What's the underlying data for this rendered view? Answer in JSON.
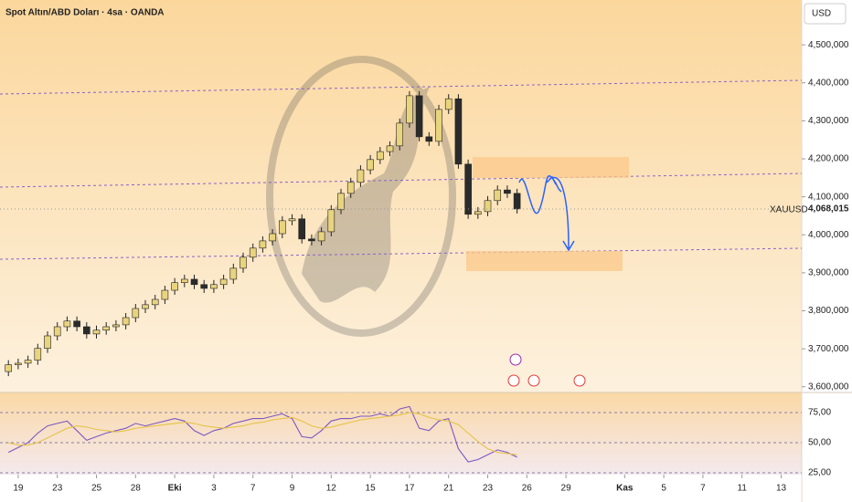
{
  "chart_data": [
    {
      "type": "candlestick",
      "title": "Spot Altın/ABD Doları · 4sa · OANDA",
      "currency": "USD",
      "up_color": "#e9d47e",
      "down_color": "#2b2b2b",
      "x": [
        -0.5,
        0,
        0.5,
        1,
        1.5,
        2,
        2.5,
        3,
        3.5,
        4,
        4.5,
        5,
        5.5,
        6,
        6.5,
        7,
        7.5,
        8,
        8.5,
        9,
        9.5,
        10,
        10.5,
        11,
        11.5,
        12,
        12.5,
        13,
        13.5,
        14,
        14.5,
        15,
        15.5,
        16,
        16.5,
        17,
        17.5,
        18,
        18.5,
        19,
        19.5,
        20,
        20.5,
        21,
        21.5,
        22,
        22.5,
        23,
        23.5,
        24,
        24.5,
        25,
        25.5
      ],
      "open": [
        3640000,
        3658000,
        3662000,
        3670000,
        3701000,
        3734000,
        3758000,
        3773000,
        3758000,
        3739000,
        3749000,
        3758000,
        3763000,
        3782000,
        3806000,
        3816000,
        3830000,
        3854000,
        3874000,
        3883000,
        3869000,
        3859000,
        3869000,
        3883000,
        3912000,
        3941000,
        3965000,
        3984000,
        4003000,
        4037000,
        4042000,
        3989000,
        3984000,
        4008000,
        4066000,
        4109000,
        4138000,
        4171000,
        4198000,
        4219000,
        4234000,
        4294000,
        4366000,
        4258000,
        4246000,
        4330000,
        4358000,
        4186000,
        4054000,
        4061000,
        4090000,
        4118000,
        4109000
      ],
      "high": [
        3670000,
        3674000,
        3682000,
        3713000,
        3746000,
        3770000,
        3785000,
        3785000,
        3770000,
        3761000,
        3770000,
        3775000,
        3794000,
        3818000,
        3828000,
        3842000,
        3866000,
        3886000,
        3895000,
        3895000,
        3881000,
        3881000,
        3895000,
        3924000,
        3953000,
        3977000,
        3996000,
        4015000,
        4049000,
        4054000,
        4054000,
        4001000,
        4020000,
        4078000,
        4121000,
        4150000,
        4183000,
        4210000,
        4231000,
        4246000,
        4306000,
        4378000,
        4378000,
        4270000,
        4342000,
        4370000,
        4370000,
        4198000,
        4073000,
        4102000,
        4130000,
        4130000,
        4121000
      ],
      "low": [
        3628000,
        3646000,
        3650000,
        3658000,
        3689000,
        3722000,
        3746000,
        3746000,
        3727000,
        3727000,
        3737000,
        3746000,
        3751000,
        3770000,
        3794000,
        3804000,
        3818000,
        3842000,
        3862000,
        3857000,
        3847000,
        3847000,
        3857000,
        3871000,
        3900000,
        3929000,
        3953000,
        3972000,
        3991000,
        4025000,
        3977000,
        3972000,
        3972000,
        3996000,
        4054000,
        4097000,
        4126000,
        4159000,
        4186000,
        4207000,
        4222000,
        4282000,
        4246000,
        4234000,
        4234000,
        4318000,
        4174000,
        4042000,
        4042000,
        4049000,
        4078000,
        4097000,
        4056000
      ],
      "close": [
        3658000,
        3662000,
        3670000,
        3701000,
        3734000,
        3758000,
        3773000,
        3758000,
        3739000,
        3749000,
        3758000,
        3763000,
        3782000,
        3806000,
        3816000,
        3830000,
        3854000,
        3874000,
        3883000,
        3869000,
        3859000,
        3869000,
        3883000,
        3912000,
        3941000,
        3965000,
        3984000,
        4003000,
        4037000,
        4042000,
        3989000,
        3984000,
        4008000,
        4066000,
        4109000,
        4138000,
        4171000,
        4198000,
        4219000,
        4234000,
        4294000,
        4366000,
        4258000,
        4246000,
        4330000,
        4358000,
        4186000,
        4054000,
        4061000,
        4090000,
        4118000,
        4109000,
        4068000
      ],
      "xlim": [
        -0.93,
        40.05
      ],
      "ylim": [
        3585000,
        4618000
      ],
      "yticks": [
        {
          "value": 3600000,
          "label": "3,600,000"
        },
        {
          "value": 3700000,
          "label": "3,700,000"
        },
        {
          "value": 3800000,
          "label": "3,800,000"
        },
        {
          "value": 3900000,
          "label": "3,900,000"
        },
        {
          "value": 4000000,
          "label": "4,000,000"
        },
        {
          "value": 4100000,
          "label": "4,100,000"
        },
        {
          "value": 4200000,
          "label": "4,200,000"
        },
        {
          "value": 4300000,
          "label": "4,300,000"
        },
        {
          "value": 4400000,
          "label": "4,400,000"
        },
        {
          "value": 4500000,
          "label": "4,500,000"
        }
      ],
      "xticks": [
        {
          "value": 0,
          "label": "19"
        },
        {
          "value": 2,
          "label": "23"
        },
        {
          "value": 4,
          "label": "25"
        },
        {
          "value": 6,
          "label": "28"
        },
        {
          "value": 8,
          "label": "Eki"
        },
        {
          "value": 10,
          "label": "3"
        },
        {
          "value": 12,
          "label": "7"
        },
        {
          "value": 14,
          "label": "9"
        },
        {
          "value": 16,
          "label": "12"
        },
        {
          "value": 18,
          "label": "15"
        },
        {
          "value": 20,
          "label": "17"
        },
        {
          "value": 22,
          "label": "21"
        },
        {
          "value": 24,
          "label": "23"
        },
        {
          "value": 26,
          "label": "26"
        },
        {
          "value": 28,
          "label": "29"
        },
        {
          "value": 31,
          "label": "Kas"
        },
        {
          "value": 33,
          "label": "5"
        },
        {
          "value": 35,
          "label": "7"
        },
        {
          "value": 37,
          "label": "11"
        },
        {
          "value": 39,
          "label": "13"
        }
      ],
      "last_price_name": "XAUUSD",
      "last_price": {
        "value": 4068015,
        "label": "4,068,015"
      }
    },
    {
      "type": "line",
      "xlim": [
        -0.93,
        40.05
      ],
      "ylim": [
        23.5,
        91.7
      ],
      "yticks": [
        {
          "value": 25,
          "label": "25,00"
        },
        {
          "value": 50,
          "label": "50,00"
        },
        {
          "value": 75,
          "label": "75,00"
        }
      ],
      "x": [
        -0.5,
        0,
        0.5,
        1,
        1.5,
        2,
        2.5,
        3,
        3.5,
        4,
        4.5,
        5,
        5.5,
        6,
        6.5,
        7,
        7.5,
        8,
        8.5,
        9,
        9.5,
        10,
        10.5,
        11,
        11.5,
        12,
        12.5,
        13,
        13.5,
        14,
        14.5,
        15,
        15.5,
        16,
        16.5,
        17,
        17.5,
        18,
        18.5,
        19,
        19.5,
        20,
        20.5,
        21,
        21.5,
        22,
        22.5,
        23,
        23.5,
        24,
        24.5,
        25,
        25.5
      ],
      "series": [
        {
          "color": "#7e57c2",
          "values": [
            42,
            46,
            50,
            58,
            64,
            66,
            68,
            60,
            52,
            55,
            58,
            60,
            62,
            66,
            64,
            66,
            68,
            70,
            68,
            60,
            56,
            60,
            62,
            66,
            68,
            70,
            70,
            72,
            74,
            70,
            55,
            54,
            60,
            68,
            70,
            70,
            72,
            72,
            74,
            72,
            78,
            80,
            62,
            60,
            68,
            70,
            45,
            34,
            36,
            40,
            44,
            42,
            38
          ]
        },
        {
          "color": "#e6c34a",
          "values": [
            50,
            48,
            48,
            50,
            54,
            58,
            62,
            64,
            63,
            61,
            60,
            59,
            60,
            62,
            63,
            64,
            65,
            66,
            67,
            66,
            64,
            63,
            62,
            63,
            64,
            66,
            67,
            69,
            70,
            71,
            68,
            64,
            62,
            63,
            65,
            67,
            69,
            70,
            71,
            72,
            73,
            75,
            74,
            71,
            69,
            68,
            65,
            58,
            51,
            45,
            42,
            41,
            40
          ]
        }
      ]
    }
  ]
}
